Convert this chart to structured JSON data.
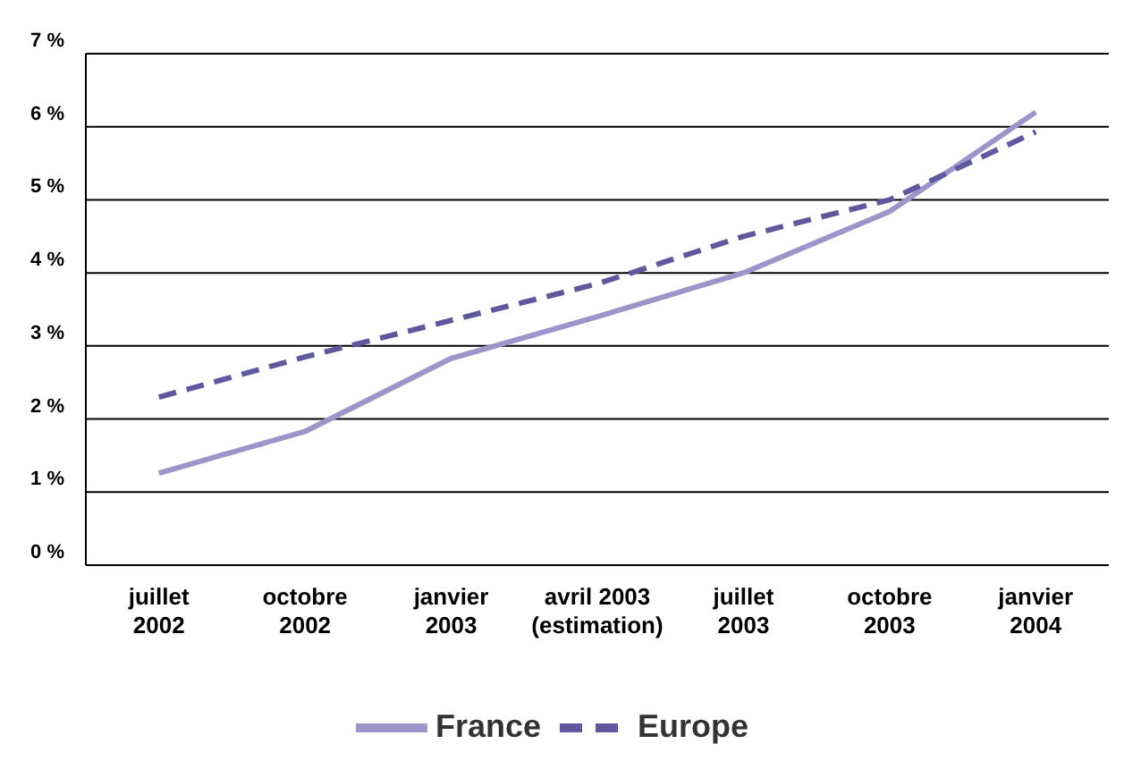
{
  "chart_data": {
    "type": "line",
    "categories": [
      "juillet\n2002",
      "octobre\n2002",
      "janvier\n2003",
      "avril 2003\n(estimation)",
      "juillet\n2003",
      "octobre\n2003",
      "janvier\n2004"
    ],
    "series": [
      {
        "name": "France",
        "color": "#9b95c9",
        "values": [
          1.26,
          1.83,
          2.83,
          3.4,
          4.0,
          4.84,
          6.2
        ]
      },
      {
        "name": "Europe",
        "color": "#5f589f",
        "values": [
          2.3,
          2.85,
          3.35,
          3.85,
          4.5,
          5.0,
          5.93
        ],
        "line_style": "dashed"
      }
    ],
    "ylim": [
      0,
      7
    ],
    "yticks": [
      {
        "value": 0,
        "label": "0 %"
      },
      {
        "value": 1,
        "label": "1 %"
      },
      {
        "value": 2,
        "label": "2 %"
      },
      {
        "value": 3,
        "label": "3 %"
      },
      {
        "value": 4,
        "label": "4 %"
      },
      {
        "value": 5,
        "label": "5 %"
      },
      {
        "value": 6,
        "label": "6 %"
      },
      {
        "value": 7,
        "label": "7 %"
      }
    ],
    "grid": "y",
    "legend": "bottom",
    "marker": "none"
  }
}
